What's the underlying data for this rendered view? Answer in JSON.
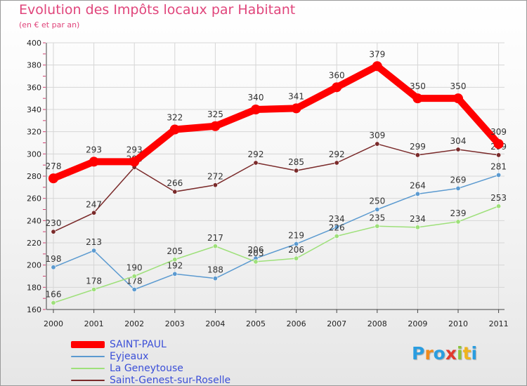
{
  "header": {
    "title": "Evolution des Impôts locaux par Habitant",
    "subtitle": "(en € et par an)"
  },
  "logo": {
    "text": "Proxiti",
    "letter_colors": [
      "#2a9de0",
      "#f08a1c",
      "#2a9de0",
      "#e23a2e",
      "#8cc43c",
      "#f0b41c",
      "#2a9de0"
    ]
  },
  "chart_data": {
    "type": "line",
    "title": "Evolution des Impôts locaux par Habitant",
    "subtitle": "(en € et par an)",
    "x": [
      "2000",
      "2001",
      "2002",
      "2003",
      "2004",
      "2005",
      "2006",
      "2007",
      "2008",
      "2009",
      "2010",
      "2011"
    ],
    "ylim": [
      160,
      400
    ],
    "yticks": [
      160,
      180,
      200,
      220,
      240,
      260,
      280,
      300,
      320,
      340,
      360,
      380,
      400
    ],
    "grid": true,
    "legend_position": "bottom-left",
    "series": [
      {
        "name": "Saint-Genest-sur-Roselle",
        "color": "#7a2a2a",
        "values": [
          230,
          247,
          288,
          266,
          272,
          292,
          285,
          292,
          309,
          299,
          304,
          299
        ],
        "labels": [
          "230",
          "247",
          "288",
          "266",
          "272",
          "292",
          "285",
          "292",
          "309",
          "299",
          "304",
          "299"
        ]
      },
      {
        "name": "Eyjeaux",
        "color": "#5b9ad0",
        "values": [
          198,
          213,
          178,
          192,
          188,
          206,
          219,
          234,
          250,
          264,
          269,
          281
        ],
        "labels": [
          "198",
          "213",
          "178",
          "192",
          "188",
          "206",
          "219",
          "234",
          "250",
          "264",
          "269",
          "281"
        ]
      },
      {
        "name": "La Geneytouse",
        "color": "#9ee07a",
        "values": [
          166,
          178,
          190,
          205,
          217,
          203,
          206,
          226,
          235,
          234,
          239,
          253
        ],
        "labels": [
          "166",
          "178",
          "190",
          "205",
          "217",
          "203",
          "206",
          "226",
          "235",
          "234",
          "239",
          "253"
        ]
      },
      {
        "name": "SAINT-PAUL",
        "color": "#ff0000",
        "values": [
          278,
          293,
          293,
          322,
          325,
          340,
          341,
          360,
          379,
          350,
          350,
          309
        ],
        "labels": [
          "278",
          "293",
          "293",
          "322",
          "325",
          "340",
          "341",
          "360",
          "379",
          "350",
          "350",
          "309"
        ]
      }
    ],
    "legend": [
      {
        "name": "SAINT-PAUL",
        "color": "#ff0000",
        "width": 10
      },
      {
        "name": "Eyjeaux",
        "color": "#5b9ad0",
        "width": 2
      },
      {
        "name": "La Geneytouse",
        "color": "#9ee07a",
        "width": 2
      },
      {
        "name": "Saint-Genest-sur-Roselle",
        "color": "#7a2a2a",
        "width": 2
      }
    ]
  }
}
